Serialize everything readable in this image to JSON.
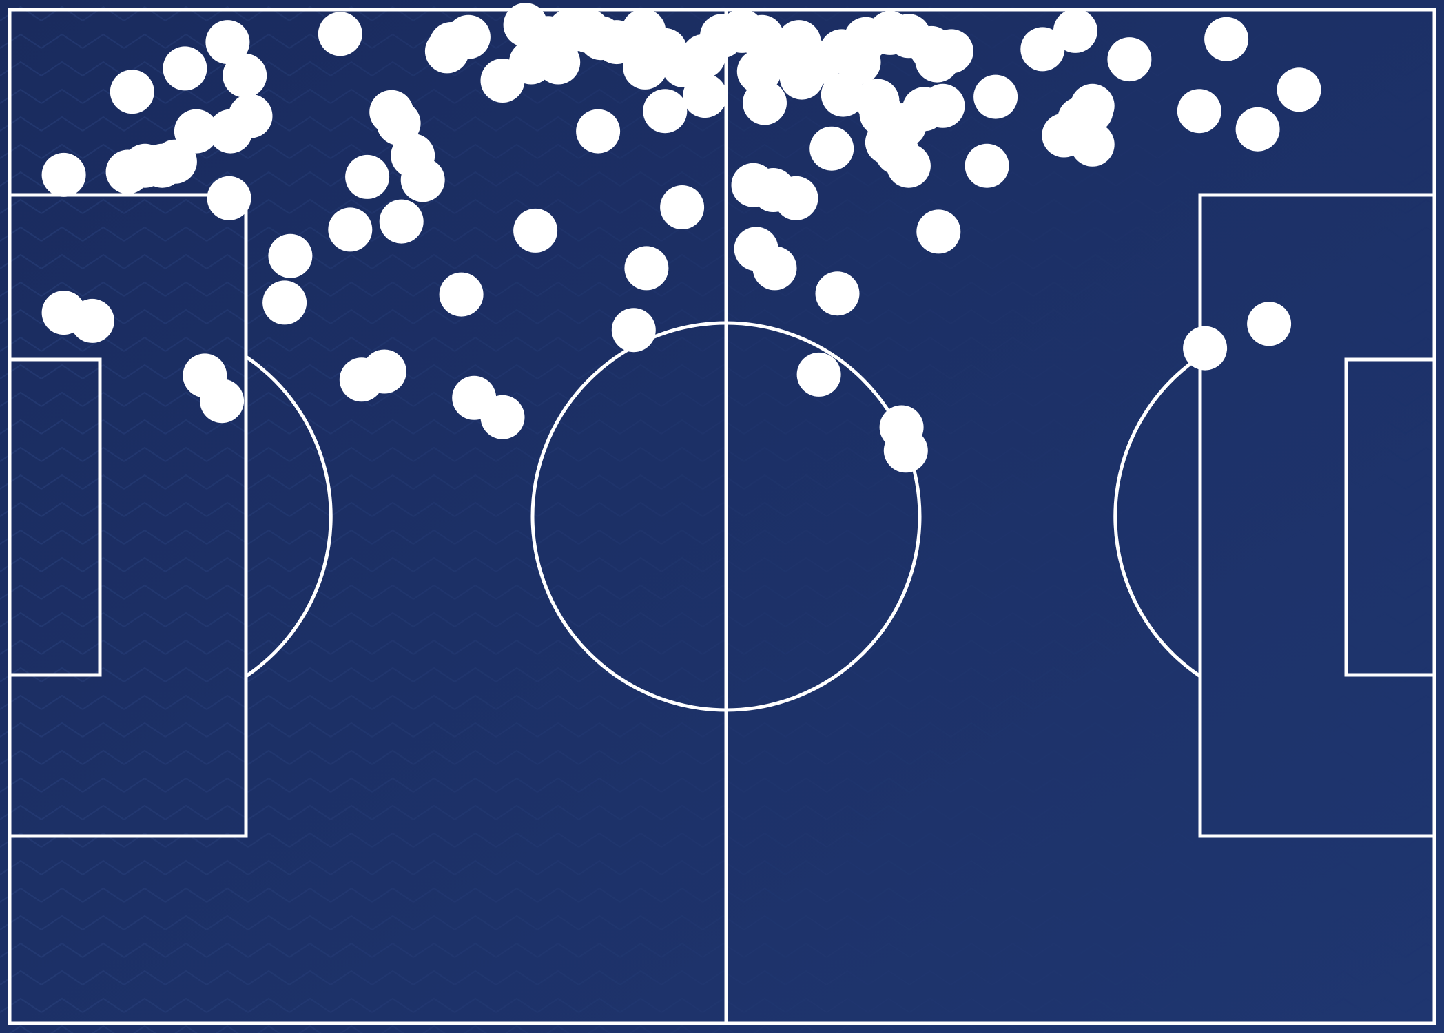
{
  "chart_data": {
    "type": "scatter",
    "title": "",
    "xlabel": "",
    "ylabel": "",
    "grid": false,
    "legend": "none",
    "xlim": [
      0,
      100
    ],
    "ylim": [
      0,
      100
    ],
    "colors": {
      "pitch": "#1d3167",
      "pitch_dark": "#1a2d60",
      "lines": "#ffffff",
      "points": "#ffffff",
      "pattern": "#2b4380"
    },
    "points": [
      {
        "x": 15.3,
        "y": 3.2
      },
      {
        "x": 23.2,
        "y": 2.4
      },
      {
        "x": 31.0,
        "y": 3.4
      },
      {
        "x": 32.2,
        "y": 2.7
      },
      {
        "x": 36.2,
        "y": 1.5
      },
      {
        "x": 37.8,
        "y": 2.8
      },
      {
        "x": 39.3,
        "y": 2.1
      },
      {
        "x": 40.6,
        "y": 2.1
      },
      {
        "x": 41.5,
        "y": 2.8
      },
      {
        "x": 42.6,
        "y": 3.2
      },
      {
        "x": 44.5,
        "y": 2.1
      },
      {
        "x": 46.0,
        "y": 4.0
      },
      {
        "x": 47.3,
        "y": 5.5
      },
      {
        "x": 48.7,
        "y": 4.6
      },
      {
        "x": 50.0,
        "y": 2.6
      },
      {
        "x": 51.4,
        "y": 2.1
      },
      {
        "x": 52.8,
        "y": 2.7
      },
      {
        "x": 53.8,
        "y": 4.4
      },
      {
        "x": 55.4,
        "y": 3.2
      },
      {
        "x": 56.8,
        "y": 5.2
      },
      {
        "x": 58.4,
        "y": 4.1
      },
      {
        "x": 60.1,
        "y": 2.9
      },
      {
        "x": 61.8,
        "y": 2.3
      },
      {
        "x": 63.1,
        "y": 2.6
      },
      {
        "x": 64.7,
        "y": 3.8
      },
      {
        "x": 65.1,
        "y": 5.0
      },
      {
        "x": 72.5,
        "y": 3.9
      },
      {
        "x": 74.8,
        "y": 2.1
      },
      {
        "x": 78.6,
        "y": 4.9
      },
      {
        "x": 85.4,
        "y": 2.9
      },
      {
        "x": 30.7,
        "y": 4.1
      },
      {
        "x": 36.6,
        "y": 5.2
      },
      {
        "x": 38.5,
        "y": 5.2
      },
      {
        "x": 44.6,
        "y": 5.7
      },
      {
        "x": 52.6,
        "y": 6.1
      },
      {
        "x": 55.6,
        "y": 6.7
      },
      {
        "x": 59.6,
        "y": 5.2
      },
      {
        "x": 66.1,
        "y": 4.1
      },
      {
        "x": 8.6,
        "y": 8.1
      },
      {
        "x": 12.3,
        "y": 5.8
      },
      {
        "x": 16.5,
        "y": 6.5
      },
      {
        "x": 26.8,
        "y": 10.1
      },
      {
        "x": 34.6,
        "y": 7.0
      },
      {
        "x": 41.3,
        "y": 12.0
      },
      {
        "x": 46.0,
        "y": 10.0
      },
      {
        "x": 48.8,
        "y": 8.5
      },
      {
        "x": 53.0,
        "y": 9.2
      },
      {
        "x": 58.5,
        "y": 8.4
      },
      {
        "x": 60.9,
        "y": 9.0
      },
      {
        "x": 64.2,
        "y": 9.8
      },
      {
        "x": 69.2,
        "y": 8.6
      },
      {
        "x": 75.9,
        "y": 10.0
      },
      {
        "x": 76.0,
        "y": 9.5
      },
      {
        "x": 83.5,
        "y": 10.0
      },
      {
        "x": 87.6,
        "y": 11.8
      },
      {
        "x": 90.5,
        "y": 7.9
      },
      {
        "x": 76.0,
        "y": 13.3
      },
      {
        "x": 61.2,
        "y": 10.3
      },
      {
        "x": 62.8,
        "y": 11.4
      },
      {
        "x": 65.5,
        "y": 9.5
      },
      {
        "x": 16.9,
        "y": 10.5
      },
      {
        "x": 15.5,
        "y": 12.0
      },
      {
        "x": 3.8,
        "y": 16.3
      },
      {
        "x": 8.3,
        "y": 16.0
      },
      {
        "x": 9.5,
        "y": 15.4
      },
      {
        "x": 10.7,
        "y": 15.4
      },
      {
        "x": 11.6,
        "y": 15.0
      },
      {
        "x": 13.1,
        "y": 12.0
      },
      {
        "x": 25.1,
        "y": 16.5
      },
      {
        "x": 27.3,
        "y": 11.2
      },
      {
        "x": 28.3,
        "y": 14.4
      },
      {
        "x": 29.0,
        "y": 16.8
      },
      {
        "x": 57.7,
        "y": 13.7
      },
      {
        "x": 61.6,
        "y": 13.1
      },
      {
        "x": 62.3,
        "y": 14.1
      },
      {
        "x": 63.1,
        "y": 15.4
      },
      {
        "x": 68.6,
        "y": 15.4
      },
      {
        "x": 74.0,
        "y": 12.4
      },
      {
        "x": 75.1,
        "y": 10.8
      },
      {
        "x": 15.4,
        "y": 18.6
      },
      {
        "x": 52.2,
        "y": 17.3
      },
      {
        "x": 53.6,
        "y": 17.8
      },
      {
        "x": 55.2,
        "y": 18.6
      },
      {
        "x": 47.2,
        "y": 19.5
      },
      {
        "x": 23.9,
        "y": 21.7
      },
      {
        "x": 27.5,
        "y": 20.9
      },
      {
        "x": 36.9,
        "y": 21.8
      },
      {
        "x": 65.2,
        "y": 21.9
      },
      {
        "x": 19.7,
        "y": 24.3
      },
      {
        "x": 44.7,
        "y": 25.5
      },
      {
        "x": 52.4,
        "y": 23.6
      },
      {
        "x": 53.7,
        "y": 25.5
      },
      {
        "x": 19.3,
        "y": 28.9
      },
      {
        "x": 31.7,
        "y": 28.1
      },
      {
        "x": 58.1,
        "y": 28.0
      },
      {
        "x": 3.8,
        "y": 29.9
      },
      {
        "x": 5.8,
        "y": 30.7
      },
      {
        "x": 43.8,
        "y": 31.6
      },
      {
        "x": 88.4,
        "y": 31.0
      },
      {
        "x": 83.9,
        "y": 33.4
      },
      {
        "x": 13.7,
        "y": 36.1
      },
      {
        "x": 14.9,
        "y": 38.6
      },
      {
        "x": 24.7,
        "y": 36.5
      },
      {
        "x": 26.3,
        "y": 35.7
      },
      {
        "x": 32.6,
        "y": 38.3
      },
      {
        "x": 34.6,
        "y": 40.2
      },
      {
        "x": 56.8,
        "y": 36.0
      },
      {
        "x": 62.6,
        "y": 41.2
      },
      {
        "x": 62.9,
        "y": 43.5
      }
    ]
  }
}
